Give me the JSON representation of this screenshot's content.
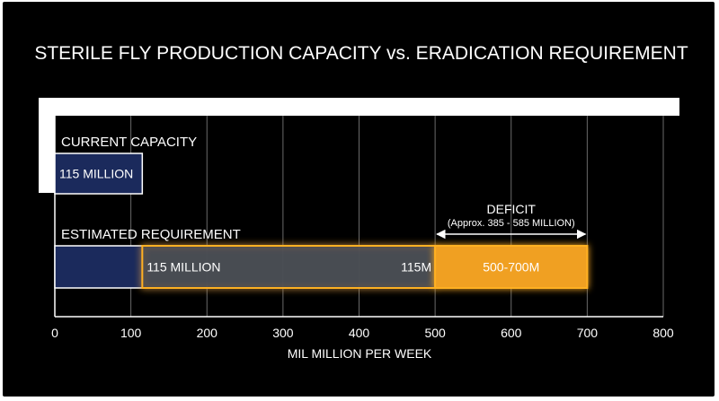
{
  "chart_data": {
    "type": "bar",
    "title": "STERILE FLY  PRODUCTION CAPACITY vs. ERADICATION REQUIREMENT",
    "xlabel": "MIL MILLION PER WEEK",
    "ylabel": "",
    "xlim": [
      0,
      800
    ],
    "xticks": [
      0,
      100,
      200,
      300,
      400,
      500,
      600,
      700,
      800
    ],
    "xtick_labels": [
      "0",
      "100",
      "200",
      "300",
      "400",
      "500",
      "600",
      "700",
      "800"
    ],
    "grid": true,
    "orientation": "horizontal",
    "rows": [
      {
        "label": "CURRENT CAPACITY",
        "segments": [
          {
            "start": 0,
            "end": 115,
            "color": "#1b2a5c",
            "label": "115 MILLION"
          }
        ]
      },
      {
        "label": "ESTIMATED REQUIREMENT",
        "segments": [
          {
            "start": 0,
            "end": 115,
            "color": "#1b2a5c",
            "label": ""
          },
          {
            "start": 115,
            "end": 500,
            "color": "#4a4e54",
            "label": "115 MILLION",
            "end_label": "115M"
          },
          {
            "start": 500,
            "end": 700,
            "color": "#f0a020",
            "label": "500-700M"
          }
        ]
      }
    ],
    "annotation": {
      "title": "DEFICIT",
      "subtitle": "(Approx. 385 - 585 MILLION)",
      "from": 500,
      "to": 700
    },
    "colors": {
      "capacity": "#1b2a5c",
      "gap": "#4a4e54",
      "deficit": "#f0a020",
      "glow": "#ffb020"
    }
  }
}
